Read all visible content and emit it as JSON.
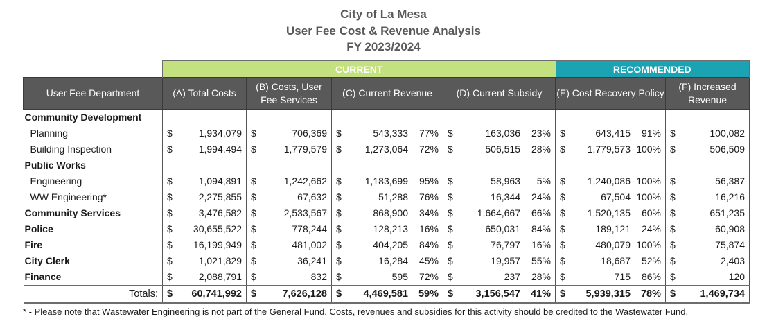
{
  "title": {
    "line1": "City of La Mesa",
    "line2": "User Fee Cost & Revenue Analysis",
    "line3": "FY 2023/2024"
  },
  "bands": {
    "current": "CURRENT",
    "recommended": "RECOMMENDED"
  },
  "colors": {
    "current_band": "#c4e17f",
    "recommended_band": "#1ba3b3",
    "header_bg": "#595959"
  },
  "headers": {
    "dept": "User Fee Department",
    "a": "(A) Total Costs",
    "b": "(B)  Costs, User Fee Services",
    "c": "(C)  Current Revenue",
    "d": "(D)  Current   Subsidy",
    "e": "(E)  Cost Recovery Policy",
    "f": "(F)  Increased Revenue"
  },
  "currency": "$",
  "rows": [
    {
      "dept": "Community Development",
      "type": "group"
    },
    {
      "dept": "Planning",
      "type": "sub",
      "a": "1,934,079",
      "b": "706,369",
      "c": "543,333",
      "c_pct": "77%",
      "d": "163,036",
      "d_pct": "23%",
      "e": "643,415",
      "e_pct": "91%",
      "f": "100,082"
    },
    {
      "dept": "Building Inspection",
      "type": "sub",
      "a": "1,994,494",
      "b": "1,779,579",
      "c": "1,273,064",
      "c_pct": "72%",
      "d": "506,515",
      "d_pct": "28%",
      "e": "1,779,573",
      "e_pct": "100%",
      "f": "506,509"
    },
    {
      "dept": "Public Works",
      "type": "group"
    },
    {
      "dept": "Engineering",
      "type": "sub",
      "a": "1,094,891",
      "b": "1,242,662",
      "c": "1,183,699",
      "c_pct": "95%",
      "d": "58,963",
      "d_pct": "5%",
      "e": "1,240,086",
      "e_pct": "100%",
      "f": "56,387"
    },
    {
      "dept": "WW Engineering*",
      "type": "sub",
      "a": "2,275,855",
      "b": "67,632",
      "c": "51,288",
      "c_pct": "76%",
      "d": "16,344",
      "d_pct": "24%",
      "e": "67,504",
      "e_pct": "100%",
      "f": "16,216"
    },
    {
      "dept": "Community Services",
      "type": "group",
      "a": "3,476,582",
      "b": "2,533,567",
      "c": "868,900",
      "c_pct": "34%",
      "d": "1,664,667",
      "d_pct": "66%",
      "e": "1,520,135",
      "e_pct": "60%",
      "f": "651,235"
    },
    {
      "dept": "Police",
      "type": "group",
      "a": "30,655,522",
      "b": "778,244",
      "c": "128,213",
      "c_pct": "16%",
      "d": "650,031",
      "d_pct": "84%",
      "e": "189,121",
      "e_pct": "24%",
      "f": "60,908"
    },
    {
      "dept": "Fire",
      "type": "group",
      "a": "16,199,949",
      "b": "481,002",
      "c": "404,205",
      "c_pct": "84%",
      "d": "76,797",
      "d_pct": "16%",
      "e": "480,079",
      "e_pct": "100%",
      "f": "75,874"
    },
    {
      "dept": "City Clerk",
      "type": "group",
      "a": "1,021,829",
      "b": "36,241",
      "c": "16,284",
      "c_pct": "45%",
      "d": "19,957",
      "d_pct": "55%",
      "e": "18,687",
      "e_pct": "52%",
      "f": "2,403"
    },
    {
      "dept": "Finance",
      "type": "group",
      "a": "2,088,791",
      "b": "832",
      "c": "595",
      "c_pct": "72%",
      "d": "237",
      "d_pct": "28%",
      "e": "715",
      "e_pct": "86%",
      "f": "120"
    }
  ],
  "totals": {
    "label": "Totals:",
    "a": "60,741,992",
    "b": "7,626,128",
    "c": "4,469,581",
    "c_pct": "59%",
    "d": "3,156,547",
    "d_pct": "41%",
    "e": "5,939,315",
    "e_pct": "78%",
    "f": "1,469,734"
  },
  "footnote": "* - Please note that Wastewater Engineering is not part of the General Fund.  Costs, revenues and subsidies for this activity should be credited to the Wastewater Fund."
}
